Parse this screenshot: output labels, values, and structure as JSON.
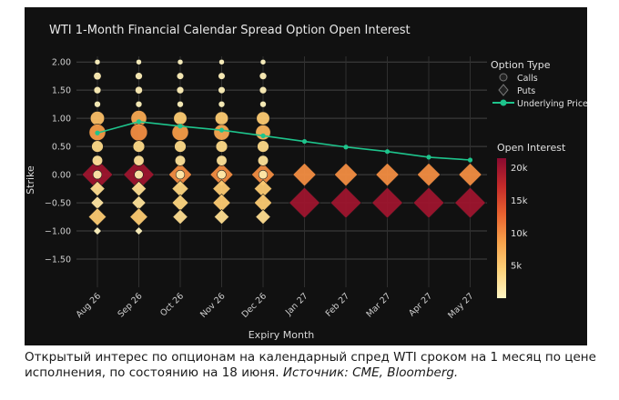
{
  "caption": {
    "text": "Открытый интерес по опционам на календарный спред WTI сроком на 1 месяц по цене исполнения, по состоянию на 18 июня. ",
    "source": "Источник: CME, Bloomberg."
  },
  "chart_data": {
    "type": "scatter",
    "title": "WTI 1-Month Financial Calendar Spread Option Open Interest",
    "xlabel": "Expiry Month",
    "ylabel": "Strike",
    "categories": [
      "Aug 26",
      "Sep 26",
      "Oct 26",
      "Nov 26",
      "Dec 26",
      "Jan 27",
      "Feb 27",
      "Mar 27",
      "Apr 27",
      "May 27"
    ],
    "y_ticks": [
      2.0,
      1.5,
      1.0,
      0.5,
      0.0,
      -0.5,
      -1.0,
      -1.5
    ],
    "y_tick_labels": [
      "2.00",
      "1.50",
      "1.00",
      "0.50",
      "0.00",
      "−0.50",
      "−1.00",
      "−1.50"
    ],
    "ylim": [
      -2.0,
      2.1
    ],
    "grid": true,
    "legend": {
      "title": "Option Type",
      "position": "top-right",
      "items": [
        "Calls",
        "Puts",
        "Underlying Price"
      ]
    },
    "colorbar": {
      "title": "Open Interest",
      "range": [
        0,
        21500
      ],
      "ticks": [
        20000,
        15000,
        10000,
        5000
      ],
      "tick_labels": [
        "20k",
        "15k",
        "10k",
        "5k"
      ],
      "colors": [
        "#fff6c4",
        "#fdd27a",
        "#f7a24b",
        "#e8622f",
        "#c42a2a",
        "#8a0a30"
      ]
    },
    "series": [
      {
        "name": "Underlying Price",
        "type": "line",
        "color": "#1ec48c",
        "x": [
          "Aug 26",
          "Sep 26",
          "Oct 26",
          "Nov 26",
          "Dec 26",
          "Jan 27",
          "Feb 27",
          "Mar 27",
          "Apr 27",
          "May 27"
        ],
        "y": [
          0.74,
          0.94,
          0.86,
          0.79,
          0.69,
          0.59,
          0.49,
          0.41,
          0.31,
          0.26
        ]
      },
      {
        "name": "Calls",
        "marker": "circle",
        "points": [
          {
            "x": "Aug 26",
            "strike": 2.0,
            "oi": 200
          },
          {
            "x": "Aug 26",
            "strike": 1.75,
            "oi": 900
          },
          {
            "x": "Aug 26",
            "strike": 1.5,
            "oi": 700
          },
          {
            "x": "Aug 26",
            "strike": 1.25,
            "oi": 400
          },
          {
            "x": "Aug 26",
            "strike": 1.0,
            "oi": 6000
          },
          {
            "x": "Aug 26",
            "strike": 0.75,
            "oi": 9000
          },
          {
            "x": "Aug 26",
            "strike": 0.5,
            "oi": 3500
          },
          {
            "x": "Aug 26",
            "strike": 0.25,
            "oi": 2500
          },
          {
            "x": "Aug 26",
            "strike": 0.0,
            "oi": 1500
          },
          {
            "x": "Sep 26",
            "strike": 2.0,
            "oi": 200
          },
          {
            "x": "Sep 26",
            "strike": 1.75,
            "oi": 700
          },
          {
            "x": "Sep 26",
            "strike": 1.5,
            "oi": 800
          },
          {
            "x": "Sep 26",
            "strike": 1.25,
            "oi": 400
          },
          {
            "x": "Sep 26",
            "strike": 1.0,
            "oi": 8000
          },
          {
            "x": "Sep 26",
            "strike": 0.75,
            "oi": 10000
          },
          {
            "x": "Sep 26",
            "strike": 0.5,
            "oi": 3500
          },
          {
            "x": "Sep 26",
            "strike": 0.25,
            "oi": 2500
          },
          {
            "x": "Sep 26",
            "strike": 0.0,
            "oi": 1500
          },
          {
            "x": "Oct 26",
            "strike": 2.0,
            "oi": 200
          },
          {
            "x": "Oct 26",
            "strike": 1.75,
            "oi": 600
          },
          {
            "x": "Oct 26",
            "strike": 1.5,
            "oi": 700
          },
          {
            "x": "Oct 26",
            "strike": 1.25,
            "oi": 400
          },
          {
            "x": "Oct 26",
            "strike": 1.0,
            "oi": 5000
          },
          {
            "x": "Oct 26",
            "strike": 0.75,
            "oi": 9000
          },
          {
            "x": "Oct 26",
            "strike": 0.5,
            "oi": 3500
          },
          {
            "x": "Oct 26",
            "strike": 0.25,
            "oi": 2500
          },
          {
            "x": "Oct 26",
            "strike": 0.0,
            "oi": 1500
          },
          {
            "x": "Nov 26",
            "strike": 2.0,
            "oi": 200
          },
          {
            "x": "Nov 26",
            "strike": 1.75,
            "oi": 600
          },
          {
            "x": "Nov 26",
            "strike": 1.5,
            "oi": 600
          },
          {
            "x": "Nov 26",
            "strike": 1.25,
            "oi": 400
          },
          {
            "x": "Nov 26",
            "strike": 1.0,
            "oi": 5000
          },
          {
            "x": "Nov 26",
            "strike": 0.75,
            "oi": 8000
          },
          {
            "x": "Nov 26",
            "strike": 0.5,
            "oi": 3500
          },
          {
            "x": "Nov 26",
            "strike": 0.25,
            "oi": 2500
          },
          {
            "x": "Nov 26",
            "strike": 0.0,
            "oi": 1500
          },
          {
            "x": "Dec 26",
            "strike": 2.0,
            "oi": 200
          },
          {
            "x": "Dec 26",
            "strike": 1.75,
            "oi": 700
          },
          {
            "x": "Dec 26",
            "strike": 1.5,
            "oi": 700
          },
          {
            "x": "Dec 26",
            "strike": 1.25,
            "oi": 400
          },
          {
            "x": "Dec 26",
            "strike": 1.0,
            "oi": 5000
          },
          {
            "x": "Dec 26",
            "strike": 0.75,
            "oi": 7000
          },
          {
            "x": "Dec 26",
            "strike": 0.5,
            "oi": 3500
          },
          {
            "x": "Dec 26",
            "strike": 0.25,
            "oi": 2500
          },
          {
            "x": "Dec 26",
            "strike": 0.0,
            "oi": 1500
          }
        ]
      },
      {
        "name": "Puts",
        "marker": "diamond",
        "points": [
          {
            "x": "Aug 26",
            "strike": 0.0,
            "oi": 20000
          },
          {
            "x": "Aug 26",
            "strike": -0.25,
            "oi": 3000
          },
          {
            "x": "Aug 26",
            "strike": -0.5,
            "oi": 2000
          },
          {
            "x": "Aug 26",
            "strike": -0.75,
            "oi": 5000
          },
          {
            "x": "Aug 26",
            "strike": -1.0,
            "oi": 300
          },
          {
            "x": "Sep 26",
            "strike": 0.0,
            "oi": 20000
          },
          {
            "x": "Sep 26",
            "strike": -0.25,
            "oi": 3000
          },
          {
            "x": "Sep 26",
            "strike": -0.5,
            "oi": 2500
          },
          {
            "x": "Sep 26",
            "strike": -0.75,
            "oi": 5000
          },
          {
            "x": "Sep 26",
            "strike": -1.0,
            "oi": 300
          },
          {
            "x": "Oct 26",
            "strike": 0.0,
            "oi": 10000
          },
          {
            "x": "Oct 26",
            "strike": -0.25,
            "oi": 4000
          },
          {
            "x": "Oct 26",
            "strike": -0.5,
            "oi": 4000
          },
          {
            "x": "Oct 26",
            "strike": -0.75,
            "oi": 3000
          },
          {
            "x": "Nov 26",
            "strike": 0.0,
            "oi": 10000
          },
          {
            "x": "Nov 26",
            "strike": -0.25,
            "oi": 5000
          },
          {
            "x": "Nov 26",
            "strike": -0.5,
            "oi": 5000
          },
          {
            "x": "Nov 26",
            "strike": -0.75,
            "oi": 3000
          },
          {
            "x": "Dec 26",
            "strike": 0.0,
            "oi": 10000
          },
          {
            "x": "Dec 26",
            "strike": -0.25,
            "oi": 5000
          },
          {
            "x": "Dec 26",
            "strike": -0.5,
            "oi": 5000
          },
          {
            "x": "Dec 26",
            "strike": -0.75,
            "oi": 3000
          },
          {
            "x": "Jan 27",
            "strike": 0.0,
            "oi": 10000
          },
          {
            "x": "Jan 27",
            "strike": -0.5,
            "oi": 20000
          },
          {
            "x": "Feb 27",
            "strike": 0.0,
            "oi": 10000
          },
          {
            "x": "Feb 27",
            "strike": -0.5,
            "oi": 20000
          },
          {
            "x": "Mar 27",
            "strike": 0.0,
            "oi": 10000
          },
          {
            "x": "Mar 27",
            "strike": -0.5,
            "oi": 20000
          },
          {
            "x": "Apr 27",
            "strike": 0.0,
            "oi": 10000
          },
          {
            "x": "Apr 27",
            "strike": -0.5,
            "oi": 20000
          },
          {
            "x": "May 27",
            "strike": 0.0,
            "oi": 10000
          },
          {
            "x": "May 27",
            "strike": -0.5,
            "oi": 20000
          }
        ]
      }
    ]
  }
}
